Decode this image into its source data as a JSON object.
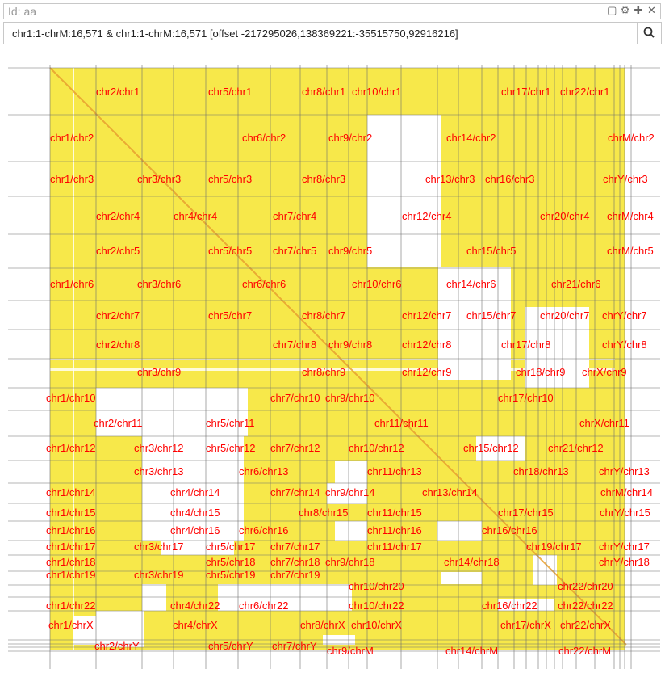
{
  "header": {
    "title": "Id: aa",
    "icons": [
      "restore-icon",
      "gear-icon",
      "move-icon",
      "close-icon"
    ],
    "icon_glyphs": [
      "▢",
      "⚙",
      "✚",
      "✕"
    ]
  },
  "search": {
    "value": "chr1:1-chrM:16,571 & chr1:1-chrM:16,571 [offset -217295026,138369221:-35515750,92916216]",
    "button_icon": "search-icon"
  },
  "colors": {
    "block_fill": "#f7e84a",
    "diagonal": "#e8a030",
    "label": "#ff0000",
    "grid": "#6e6e6e"
  },
  "labels": [
    "chr2/chr1",
    "chr5/chr1",
    "chr8/chr1",
    "chr10/chr1",
    "chr17/chr1",
    "chr22/chr1",
    "chr1/chr2",
    "chr6/chr2",
    "chr9/chr2",
    "chr14/chr2",
    "chrM/chr2",
    "chr1/chr3",
    "chr3/chr3",
    "chr5/chr3",
    "chr8/chr3",
    "chr13/chr3",
    "chr16/chr3",
    "chrY/chr3",
    "chr2/chr4",
    "chr4/chr4",
    "chr7/chr4",
    "chr12/chr4",
    "chr20/chr4",
    "chrM/chr4",
    "chr2/chr5",
    "chr5/chr5",
    "chr7/chr5",
    "chr9/chr5",
    "chr15/chr5",
    "chrM/chr5",
    "chr1/chr6",
    "chr3/chr6",
    "chr6/chr6",
    "chr10/chr6",
    "chr14/chr6",
    "chr21/chr6",
    "chr2/chr7",
    "chr5/chr7",
    "chr8/chr7",
    "chr12/chr7",
    "chr15/chr7",
    "chr20/chr7",
    "chrY/chr7",
    "chr2/chr8",
    "chr7/chr8",
    "chr9/chr8",
    "chr12/chr8",
    "chr17/chr8",
    "chrY/chr8",
    "chr3/chr9",
    "chr8/chr9",
    "chr12/chr9",
    "chr18/chr9",
    "chrX/chr9",
    "chr1/chr10",
    "chr7/chr10",
    "chr9/chr10",
    "chr17/chr10",
    "chr2/chr11",
    "chr5/chr11",
    "chr11/chr11",
    "chrX/chr11",
    "chr1/chr12",
    "chr3/chr12",
    "chr5/chr12",
    "chr7/chr12",
    "chr10/chr12",
    "chr15/chr12",
    "chr21/chr12",
    "chr3/chr13",
    "chr6/chr13",
    "chr11/chr13",
    "chr18/chr13",
    "chrY/chr13",
    "chr1/chr14",
    "chr4/chr14",
    "chr7/chr14",
    "chr9/chr14",
    "chr13/chr14",
    "chrM/chr14",
    "chr1/chr15",
    "chr4/chr15",
    "chr8/chr15",
    "chr11/chr15",
    "chr17/chr15",
    "chrY/chr15",
    "chr1/chr16",
    "chr4/chr16",
    "chr6/chr16",
    "chr11/chr16",
    "chr16/chr16",
    "chr1/chr17",
    "chr3/chr17",
    "chr5/chr17",
    "chr7/chr17",
    "chr11/chr17",
    "chr19/chr17",
    "chrY/chr17",
    "chr1/chr18",
    "chr5/chr18",
    "chr7/chr18",
    "chr9/chr18",
    "chr14/chr18",
    "chrY/chr18",
    "chr1/chr19",
    "chr3/chr19",
    "chr5/chr19",
    "chr7/chr19",
    "chr10/chr20",
    "chr22/chr20",
    "chr1/chr22",
    "chr4/chr22",
    "chr6/chr22",
    "chr10/chr22",
    "chr16/chr22",
    "chr22/chr22",
    "chr1/chrX",
    "chr4/chrX",
    "chr8/chrX",
    "chr10/chrX",
    "chr17/chrX",
    "chr22/chrX",
    "chr2/chrY",
    "chr5/chrY",
    "chr7/chrY",
    "chr9/chrM",
    "chr14/chrM",
    "chr22/chrM"
  ]
}
